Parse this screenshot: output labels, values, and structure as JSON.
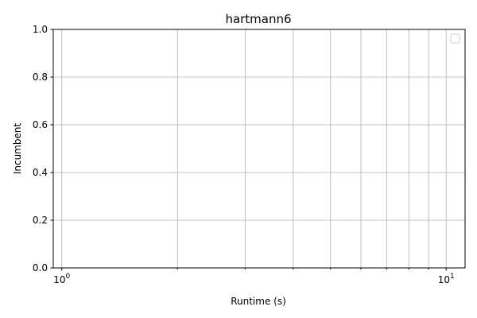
{
  "chart_data": {
    "type": "line",
    "title": "hartmann6",
    "xlabel": "Runtime (s)",
    "ylabel": "Incumbent",
    "xscale": "log",
    "xlim": [
      0.95,
      11.2
    ],
    "ylim": [
      0,
      1
    ],
    "x_major_ticks": [
      1,
      10
    ],
    "x_major_tick_labels": [
      "10",
      "10"
    ],
    "x_major_tick_exponents": [
      "0",
      "1"
    ],
    "x_minor_ticks": [
      2,
      3,
      4,
      5,
      6,
      7,
      8,
      9
    ],
    "y_ticks": [
      0,
      0.2,
      0.4,
      0.6,
      0.8,
      1
    ],
    "y_tick_labels": [
      "0.0",
      "0.2",
      "0.4",
      "0.6",
      "0.8",
      "1.0"
    ],
    "grid": true,
    "legend": {
      "placement": "top-right",
      "entries": []
    },
    "series": []
  }
}
